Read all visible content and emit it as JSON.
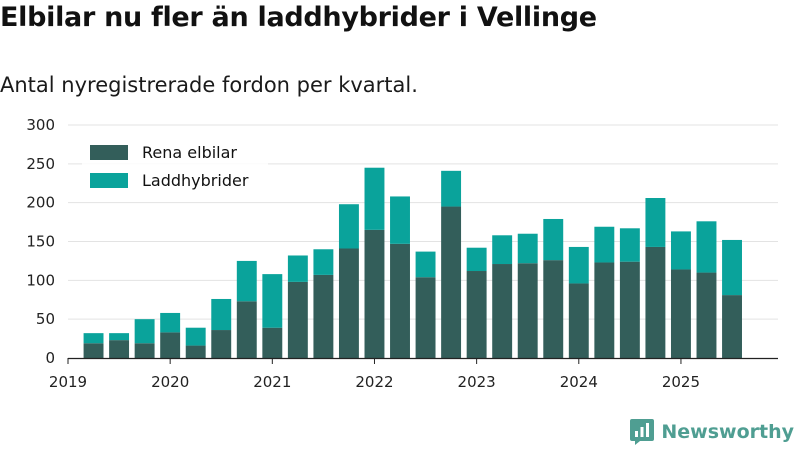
{
  "chart_data": {
    "type": "bar",
    "stacked": true,
    "title": "Elbilar nu fler än laddhybrider i Vellinge",
    "subtitle": "Antal nyregistrerade fordon per kvartal.",
    "xlabel": "",
    "ylabel": "",
    "ylim": [
      0,
      300
    ],
    "yticks": [
      0,
      50,
      100,
      150,
      200,
      250,
      300
    ],
    "xlim": [
      2019.0,
      2025.95
    ],
    "xticks": [
      {
        "value": 2019,
        "label": "2019"
      },
      {
        "value": 2020,
        "label": "2020"
      },
      {
        "value": 2021,
        "label": "2021"
      },
      {
        "value": 2022,
        "label": "2022"
      },
      {
        "value": 2023,
        "label": "2023"
      },
      {
        "value": 2024,
        "label": "2024"
      },
      {
        "value": 2025,
        "label": "2025"
      }
    ],
    "grid": true,
    "legend_position": "top-left",
    "periods": [
      "2019 Q2",
      "2019 Q3",
      "2019 Q4",
      "2020 Q1",
      "2020 Q2",
      "2020 Q3",
      "2020 Q4",
      "2021 Q1",
      "2021 Q2",
      "2021 Q3",
      "2021 Q4",
      "2022 Q1",
      "2022 Q2",
      "2022 Q3",
      "2022 Q4",
      "2023 Q1",
      "2023 Q2",
      "2023 Q3",
      "2023 Q4",
      "2024 Q1",
      "2024 Q2",
      "2024 Q3",
      "2024 Q4",
      "2025 Q1",
      "2025 Q2",
      "2025 Q3"
    ],
    "x": [
      2019.25,
      2019.5,
      2019.75,
      2020.0,
      2020.25,
      2020.5,
      2020.75,
      2021.0,
      2021.25,
      2021.5,
      2021.75,
      2022.0,
      2022.25,
      2022.5,
      2022.75,
      2023.0,
      2023.25,
      2023.5,
      2023.75,
      2024.0,
      2024.25,
      2024.5,
      2024.75,
      2025.0,
      2025.25,
      2025.5
    ],
    "series": [
      {
        "name": "Rena elbilar",
        "color": "#335e5a",
        "values": [
          19,
          23,
          19,
          33,
          16,
          36,
          73,
          39,
          98,
          107,
          141,
          165,
          147,
          104,
          195,
          112,
          121,
          122,
          126,
          96,
          123,
          124,
          143,
          114,
          110,
          81
        ]
      },
      {
        "name": "Laddhybrider",
        "color": "#0aa39b",
        "values": [
          13,
          9,
          31,
          25,
          23,
          40,
          52,
          69,
          34,
          33,
          57,
          80,
          61,
          33,
          46,
          30,
          37,
          38,
          53,
          47,
          46,
          43,
          63,
          49,
          66,
          71
        ]
      }
    ]
  },
  "brand": {
    "name": "Newsworthy",
    "icon": "newsworthy-logo-icon",
    "color": "#4f9e92"
  }
}
